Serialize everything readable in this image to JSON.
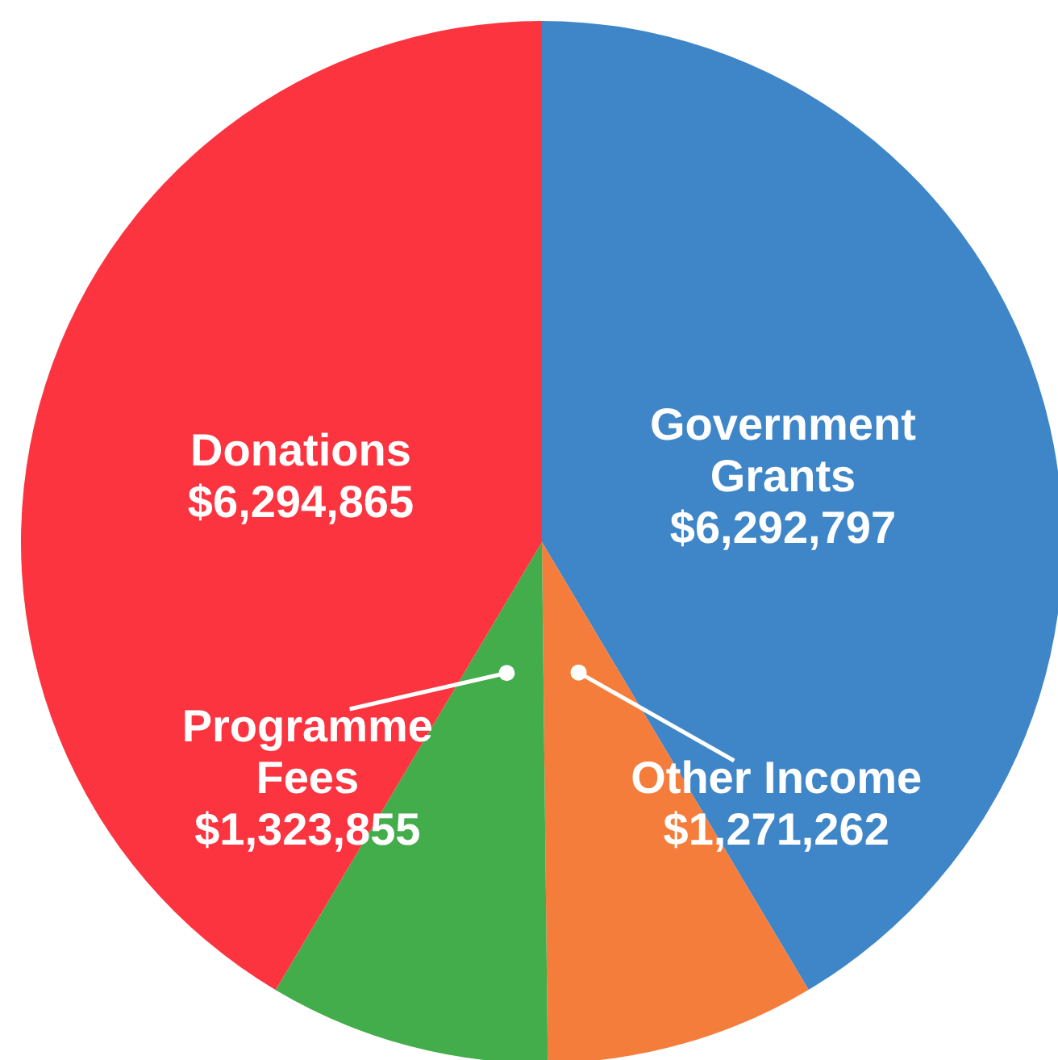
{
  "chart_data": {
    "type": "pie",
    "categories": [
      "Government Grants",
      "Other Income",
      "Programme Fees",
      "Donations"
    ],
    "values": [
      6292797,
      1271262,
      1323855,
      6294865
    ],
    "colors": [
      "#3f86c8",
      "#f57d3c",
      "#42ad4a",
      "#fb3440"
    ],
    "value_labels": [
      "$6,292,797",
      "$1,271,262",
      "$1,323,855",
      "$6,294,865"
    ]
  }
}
